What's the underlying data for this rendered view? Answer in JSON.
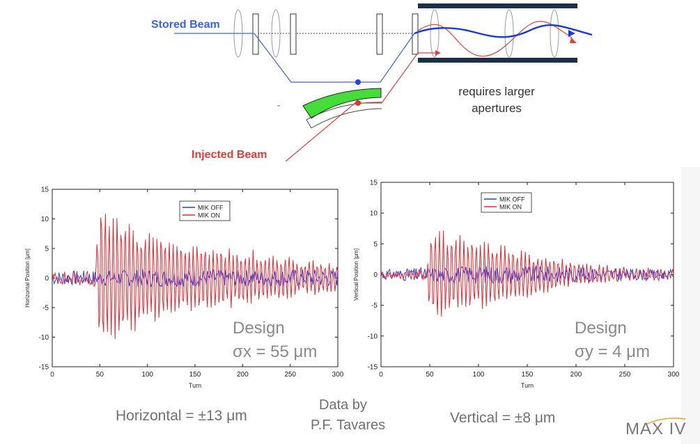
{
  "diagram": {
    "stored_label": "Stored Beam",
    "injected_label": "Injected Beam",
    "note_line1": "requires larger",
    "note_line2": "apertures"
  },
  "captions": {
    "horizontal": "Horizontal = ±13 μm",
    "vertical": "Vertical = ±8 μm",
    "credit_line1": "Data by",
    "credit_line2": "P.F. Tavares"
  },
  "design_notes": {
    "left_title": "Design",
    "left_value": "σx = 55 μm",
    "right_title": "Design",
    "right_value": "σy = 4 μm"
  },
  "logo": {
    "text": "MAX IV"
  },
  "colors": {
    "mik_off": "#1f3ff0",
    "mik_on": "#e8282e",
    "stored_beam": "#2d5be3",
    "injected_beam": "#e03a3a"
  },
  "chart_data": [
    {
      "type": "line",
      "xlabel": "Turn",
      "ylabel": "Horizontal Position [μm]",
      "xlim": [
        0,
        300
      ],
      "ylim": [
        -15,
        15
      ],
      "xticks": [
        0,
        50,
        100,
        150,
        200,
        250,
        300
      ],
      "yticks": [
        15,
        10,
        5,
        0,
        -5,
        -10,
        -15
      ],
      "legend_position": "top-center",
      "series": [
        {
          "name": "MIK OFF",
          "color": "#1f3ff0",
          "envelope": [
            [
              0,
              1.2
            ],
            [
              50,
              1.3
            ],
            [
              100,
              1.5
            ],
            [
              150,
              1.5
            ],
            [
              200,
              1.4
            ],
            [
              250,
              1.5
            ],
            [
              300,
              1.5
            ]
          ]
        },
        {
          "name": "MIK ON",
          "color": "#e8282e",
          "envelope": [
            [
              0,
              1.0
            ],
            [
              45,
              1.5
            ],
            [
              50,
              13.5
            ],
            [
              70,
              11
            ],
            [
              100,
              8
            ],
            [
              150,
              6
            ],
            [
              200,
              5
            ],
            [
              250,
              3.5
            ],
            [
              300,
              2.5
            ]
          ]
        }
      ]
    },
    {
      "type": "line",
      "xlabel": "Turn",
      "ylabel": "Vertical Position [μm]",
      "xlim": [
        0,
        300
      ],
      "ylim": [
        -15,
        15
      ],
      "xticks": [
        0,
        50,
        100,
        150,
        200,
        250,
        300
      ],
      "yticks": [
        15,
        10,
        5,
        0,
        -5,
        -10,
        -15
      ],
      "legend_position": "top-left",
      "series": [
        {
          "name": "MIK OFF",
          "color": "#1f3ff0",
          "envelope": [
            [
              0,
              0.8
            ],
            [
              50,
              1.2
            ],
            [
              100,
              1.5
            ],
            [
              150,
              1.5
            ],
            [
              200,
              1.2
            ],
            [
              250,
              1.0
            ],
            [
              300,
              0.8
            ]
          ]
        },
        {
          "name": "MIK ON",
          "color": "#e8282e",
          "envelope": [
            [
              0,
              0.6
            ],
            [
              45,
              1.0
            ],
            [
              50,
              8
            ],
            [
              100,
              6
            ],
            [
              150,
              4
            ],
            [
              200,
              2
            ],
            [
              250,
              1
            ],
            [
              300,
              0.8
            ]
          ]
        }
      ]
    }
  ]
}
